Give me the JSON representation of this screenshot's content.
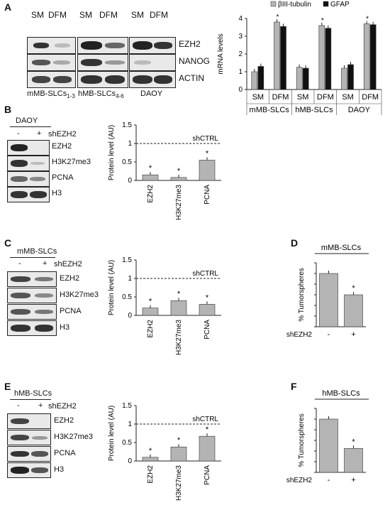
{
  "panel_letters": {
    "a": "A",
    "b": "B",
    "c": "C",
    "d": "D",
    "e": "E",
    "f": "F"
  },
  "panelA": {
    "lane_labels": [
      "SM",
      "DFM",
      "SM",
      "DFM",
      "SM",
      "DFM"
    ],
    "row_labels": [
      "EZH2",
      "NANOG",
      "ACTIN"
    ],
    "group_labels": {
      "g1_main": "mMB-SLCs",
      "g1_sub": "1-3",
      "g2_main": "hMB-SLCs",
      "g2_sub": "4-6",
      "g3": "DAOY"
    }
  },
  "panelB": {
    "cell_line": "DAOY",
    "treatment": "shEZH2",
    "minus": "-",
    "plus": "+",
    "row_labels": [
      "EZH2",
      "H3K27me3",
      "PCNA",
      "H3"
    ]
  },
  "panelC": {
    "cell_line": "mMB-SLCs",
    "treatment": "shEZH2",
    "minus": "-",
    "plus": "+",
    "row_labels": [
      "EZH2",
      "H3K27me3",
      "PCNA",
      "H3"
    ]
  },
  "panelE": {
    "cell_line": "hMB-SLCs",
    "treatment": "shEZH2",
    "minus": "-",
    "plus": "+",
    "row_labels": [
      "EZH2",
      "H3K27me3",
      "PCNA",
      "H3"
    ]
  },
  "chart_data": [
    {
      "id": "A-mRNA",
      "type": "bar",
      "ylabel": "mRNA levels",
      "ylim": [
        0,
        4
      ],
      "yticks": [
        0,
        1,
        2,
        3,
        4
      ],
      "categories": [
        "SM",
        "DFM",
        "SM",
        "DFM",
        "SM",
        "DFM"
      ],
      "groups": [
        "mMB-SLCs",
        "hMB-SLCs",
        "DAOY"
      ],
      "series": [
        {
          "name": "βIII-tubulin",
          "color": "#b4b4b4",
          "values": [
            1.0,
            3.8,
            1.25,
            3.6,
            1.2,
            3.7
          ]
        },
        {
          "name": "GFAP",
          "color": "#111111",
          "values": [
            1.3,
            3.55,
            1.2,
            3.45,
            1.4,
            3.65
          ]
        }
      ],
      "significance": [
        "",
        "*",
        "",
        "*",
        "",
        "*"
      ]
    },
    {
      "id": "B-protein",
      "type": "bar",
      "ylabel": "Protein level  (AU)",
      "ylim": [
        0,
        1.5
      ],
      "yticks": [
        0,
        0.5,
        1,
        1.5
      ],
      "reference_line": {
        "value": 1,
        "label": "shCTRL"
      },
      "categories": [
        "EZH2",
        "H3K27me3",
        "PCNA"
      ],
      "values": [
        0.15,
        0.08,
        0.55
      ],
      "significance": [
        "*",
        "*",
        "*"
      ]
    },
    {
      "id": "C-protein",
      "type": "bar",
      "ylabel": "Protein level  (AU)",
      "ylim": [
        0,
        1.5
      ],
      "yticks": [
        0,
        0.5,
        1,
        1.5
      ],
      "reference_line": {
        "value": 1,
        "label": "shCTRL"
      },
      "categories": [
        "EZH2",
        "H3K27me3",
        "PCNA"
      ],
      "values": [
        0.2,
        0.4,
        0.3
      ],
      "significance": [
        "*",
        "*",
        "*"
      ]
    },
    {
      "id": "D-tumorspheres",
      "type": "bar",
      "title": "mMB-SLCs",
      "ylabel": "% Tumorspheres",
      "ylim": [
        0,
        120
      ],
      "yticks": [
        0,
        20,
        40,
        60,
        80,
        100,
        120
      ],
      "xlabel": "shEZH2",
      "categories": [
        "-",
        "+"
      ],
      "values": [
        100,
        60
      ],
      "significance": [
        "",
        "*"
      ]
    },
    {
      "id": "E-protein",
      "type": "bar",
      "ylabel": "Protein level  (AU)",
      "ylim": [
        0,
        1.5
      ],
      "yticks": [
        0,
        0.5,
        1,
        1.5
      ],
      "reference_line": {
        "value": 1,
        "label": "shCTRL"
      },
      "categories": [
        "EZH2",
        "H3K27me3",
        "PCNA"
      ],
      "values": [
        0.1,
        0.38,
        0.67
      ],
      "significance": [
        "*",
        "*",
        "*"
      ]
    },
    {
      "id": "F-tumorspheres",
      "type": "bar",
      "title": "hMB-SLCs",
      "ylabel": "% Tumorspheres",
      "ylim": [
        0,
        120
      ],
      "yticks": [
        0,
        20,
        40,
        60,
        80,
        100,
        120
      ],
      "xlabel": "shEZH2",
      "categories": [
        "-",
        "+"
      ],
      "values": [
        100,
        45
      ],
      "significance": [
        "",
        "*"
      ]
    }
  ]
}
